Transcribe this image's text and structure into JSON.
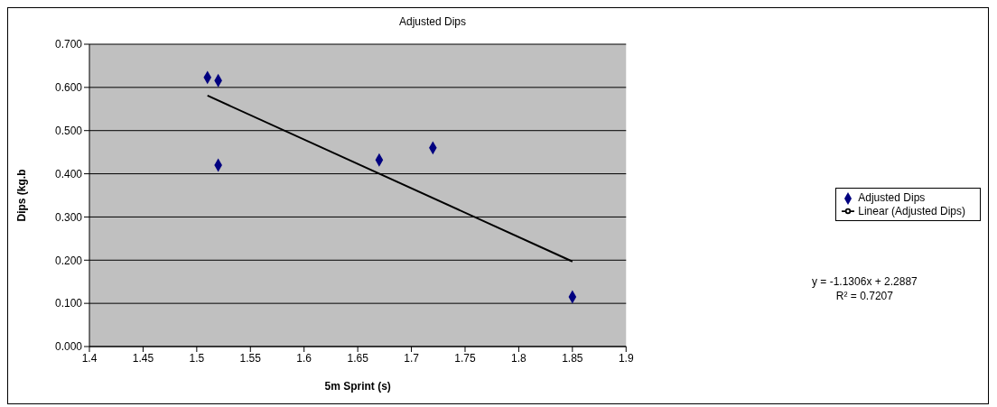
{
  "chart_data": {
    "type": "scatter",
    "title": "Adjusted Dips",
    "xlabel": "5m Sprint (s)",
    "ylabel": "Dips (kg.b",
    "xlim": [
      1.4,
      1.9
    ],
    "xticks": [
      1.4,
      1.45,
      1.5,
      1.55,
      1.6,
      1.65,
      1.7,
      1.75,
      1.8,
      1.85,
      1.9
    ],
    "ylim": [
      0,
      0.7
    ],
    "yticks": [
      {
        "value": 0,
        "label": "0.000"
      },
      {
        "value": 0.1,
        "label": "0.100"
      },
      {
        "value": 0.2,
        "label": "0.200"
      },
      {
        "value": 0.3,
        "label": "0.300"
      },
      {
        "value": 0.4,
        "label": "0.400"
      },
      {
        "value": 0.5,
        "label": "0.500"
      },
      {
        "value": 0.6,
        "label": "0.600"
      },
      {
        "value": 0.7,
        "label": "0.700"
      }
    ],
    "grid": "y",
    "legend": "right",
    "marker": "diamond",
    "series": [
      {
        "name": "Adjusted Dips",
        "color": "#000080",
        "x": [
          1.51,
          1.52,
          1.52,
          1.67,
          1.72,
          1.85
        ],
        "values": [
          0.623,
          0.616,
          0.42,
          0.432,
          0.46,
          0.115
        ]
      },
      {
        "name": "Linear (Adjusted Dips)",
        "type": "line",
        "marker": "none",
        "color": "#000000",
        "x": [
          1.51,
          1.85
        ],
        "values": [
          0.581,
          0.197
        ]
      }
    ],
    "annotations": [
      "y = -1.1306x + 2.2887",
      "R² = 0.7207"
    ]
  }
}
